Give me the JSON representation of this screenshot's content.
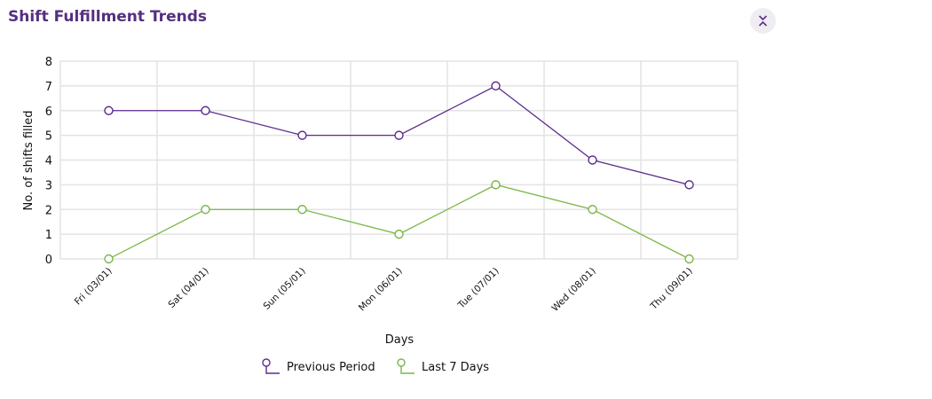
{
  "header": {
    "title": "Shift Fulfillment Trends",
    "collapse_icon": "chevrons-collapse-icon"
  },
  "colors": {
    "title": "#55307f",
    "previous": "#5b2d8e",
    "last7": "#7ab648",
    "grid": "#e3e3e3"
  },
  "chart_data": {
    "type": "line",
    "title": "",
    "xlabel": "Days",
    "ylabel": "No. of shifts filled",
    "ylim": [
      0,
      8
    ],
    "yticks": [
      "0",
      "1",
      "2",
      "3",
      "4",
      "5",
      "6",
      "7",
      "8"
    ],
    "categories": [
      "Fri (03/01)",
      "Sat (04/01)",
      "Sun (05/01)",
      "Mon (06/01)",
      "Tue (07/01)",
      "Wed (08/01)",
      "Thu (09/01)"
    ],
    "grid": true,
    "legend_position": "bottom",
    "series": [
      {
        "name": "Previous Period",
        "values": [
          6,
          6,
          5,
          5,
          7,
          4,
          3
        ]
      },
      {
        "name": "Last 7 Days",
        "values": [
          0,
          2,
          2,
          1,
          3,
          2,
          0
        ]
      }
    ]
  }
}
